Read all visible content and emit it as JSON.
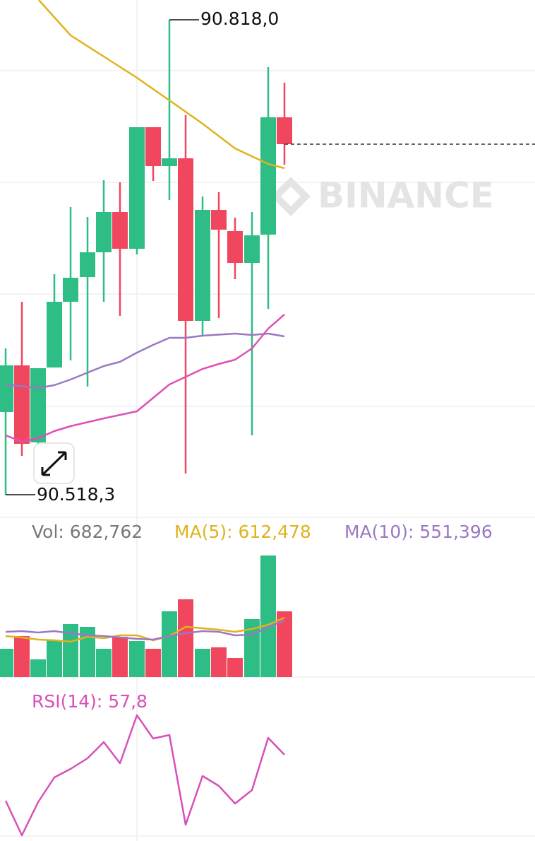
{
  "chart": {
    "high_label": "90.818,0",
    "low_label": "90.518,3",
    "watermark": "BINANCE"
  },
  "volume": {
    "vol": "Vol: 682,762",
    "ma5": "MA(5): 612,478",
    "ma10": "MA(10): 551,396"
  },
  "rsi": {
    "label": "RSI(14): 57,8"
  }
}
